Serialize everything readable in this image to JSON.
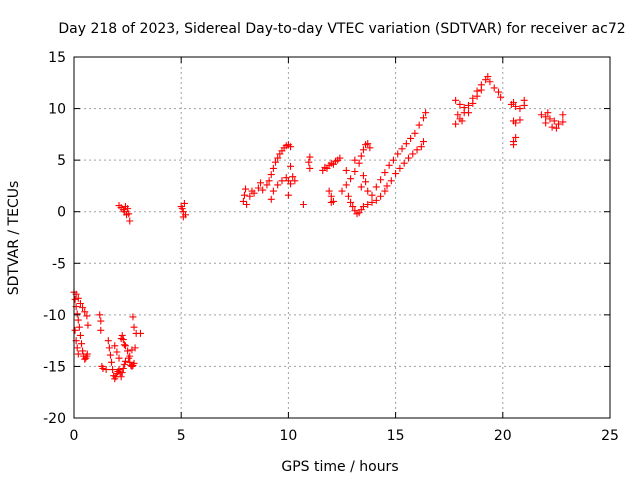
{
  "chart_data": {
    "type": "scatter",
    "title": "Day 218 of 2023, Sidereal Day-to-day VTEC variation (SDTVAR) for receiver ac72",
    "xlabel": "GPS time / hours",
    "ylabel": "SDTVAR / TECUs",
    "xlim": [
      0,
      25
    ],
    "ylim": [
      -20,
      15
    ],
    "xticks": [
      "0",
      "5",
      "10",
      "15",
      "20",
      "25"
    ],
    "yticks": [
      "-20",
      "-15",
      "-10",
      "-5",
      "0",
      "5",
      "10",
      "15"
    ],
    "grid": true,
    "marker": "+",
    "series": [
      {
        "name": "SDTVAR",
        "color": "#ff0000",
        "points": [
          [
            0.0,
            -7.8
          ],
          [
            0.05,
            -8.5
          ],
          [
            0.1,
            -9.2
          ],
          [
            0.15,
            -9.9
          ],
          [
            0.2,
            -10.5
          ],
          [
            0.25,
            -11.2
          ],
          [
            0.3,
            -12.0
          ],
          [
            0.35,
            -12.8
          ],
          [
            0.4,
            -13.5
          ],
          [
            0.45,
            -14.0
          ],
          [
            0.5,
            -14.3
          ],
          [
            0.55,
            -14.2
          ],
          [
            0.6,
            -14.0
          ],
          [
            0.62,
            -13.8
          ],
          [
            0.05,
            -11.5
          ],
          [
            0.1,
            -12.5
          ],
          [
            0.15,
            -13.2
          ],
          [
            0.2,
            -13.8
          ],
          [
            0.1,
            -8.0
          ],
          [
            0.2,
            -8.4
          ],
          [
            0.3,
            -8.9
          ],
          [
            0.4,
            -9.3
          ],
          [
            0.5,
            -9.7
          ],
          [
            0.6,
            -10.1
          ],
          [
            0.65,
            -11.0
          ],
          [
            1.2,
            -10.0
          ],
          [
            1.25,
            -10.6
          ],
          [
            1.25,
            -11.5
          ],
          [
            1.3,
            -15.0
          ],
          [
            1.35,
            -15.2
          ],
          [
            1.5,
            -15.3
          ],
          [
            1.6,
            -12.5
          ],
          [
            1.65,
            -13.2
          ],
          [
            1.7,
            -13.9
          ],
          [
            1.75,
            -14.6
          ],
          [
            1.8,
            -15.3
          ],
          [
            1.85,
            -15.9
          ],
          [
            1.9,
            -16.2
          ],
          [
            1.95,
            -16.0
          ],
          [
            2.0,
            -15.7
          ],
          [
            2.05,
            -15.5
          ],
          [
            2.1,
            -15.3
          ],
          [
            2.15,
            -15.6
          ],
          [
            2.2,
            -16.0
          ],
          [
            2.25,
            -15.6
          ],
          [
            2.3,
            -15.2
          ],
          [
            2.35,
            -14.8
          ],
          [
            2.4,
            -14.5
          ],
          [
            1.9,
            -13.0
          ],
          [
            2.0,
            -13.6
          ],
          [
            2.1,
            -14.2
          ],
          [
            2.2,
            -12.3
          ],
          [
            2.25,
            -12.0
          ],
          [
            2.3,
            -12.4
          ],
          [
            2.35,
            -12.9
          ],
          [
            2.4,
            -13.0
          ],
          [
            2.5,
            -13.5
          ],
          [
            2.55,
            -14.2
          ],
          [
            2.6,
            -14.6
          ],
          [
            2.65,
            -14.9
          ],
          [
            2.7,
            -15.0
          ],
          [
            2.75,
            -14.9
          ],
          [
            2.8,
            -14.7
          ],
          [
            2.85,
            -13.2
          ],
          [
            2.75,
            -10.2
          ],
          [
            2.8,
            -11.2
          ],
          [
            2.9,
            -11.8
          ],
          [
            3.1,
            -11.8
          ],
          [
            2.6,
            -14.0
          ],
          [
            2.7,
            -13.4
          ],
          [
            2.1,
            0.6
          ],
          [
            2.2,
            0.4
          ],
          [
            2.3,
            0.2
          ],
          [
            2.4,
            0.5
          ],
          [
            2.5,
            0.3
          ],
          [
            2.55,
            -0.2
          ],
          [
            2.6,
            -0.9
          ],
          [
            2.35,
            0.0
          ],
          [
            2.45,
            -0.3
          ],
          [
            5.05,
            0.3
          ],
          [
            5.1,
            0.0
          ],
          [
            5.15,
            0.8
          ],
          [
            5.2,
            -0.3
          ],
          [
            5.1,
            -0.5
          ],
          [
            5.0,
            0.5
          ],
          [
            7.9,
            1.0
          ],
          [
            7.95,
            1.6
          ],
          [
            8.0,
            2.2
          ],
          [
            8.05,
            0.7
          ],
          [
            8.2,
            1.5
          ],
          [
            8.3,
            2.0
          ],
          [
            8.4,
            1.8
          ],
          [
            8.6,
            2.3
          ],
          [
            8.8,
            2.1
          ],
          [
            9.0,
            2.6
          ],
          [
            9.1,
            3.0
          ],
          [
            9.2,
            3.6
          ],
          [
            9.3,
            4.2
          ],
          [
            9.4,
            4.8
          ],
          [
            9.5,
            5.2
          ],
          [
            9.6,
            5.6
          ],
          [
            9.7,
            5.9
          ],
          [
            9.8,
            6.2
          ],
          [
            9.9,
            6.4
          ],
          [
            10.0,
            6.5
          ],
          [
            10.1,
            6.3
          ],
          [
            9.3,
            2.0
          ],
          [
            9.5,
            2.6
          ],
          [
            9.7,
            3.0
          ],
          [
            9.9,
            3.3
          ],
          [
            10.0,
            3.0
          ],
          [
            10.1,
            2.7
          ],
          [
            10.2,
            3.4
          ],
          [
            10.3,
            3.0
          ],
          [
            10.1,
            4.4
          ],
          [
            10.0,
            1.6
          ],
          [
            9.2,
            1.2
          ],
          [
            8.7,
            2.8
          ],
          [
            10.7,
            0.7
          ],
          [
            10.95,
            4.8
          ],
          [
            11.0,
            5.3
          ],
          [
            11.0,
            4.2
          ],
          [
            11.6,
            4.0
          ],
          [
            11.7,
            4.3
          ],
          [
            11.8,
            4.2
          ],
          [
            11.9,
            4.5
          ],
          [
            12.0,
            4.7
          ],
          [
            12.1,
            4.6
          ],
          [
            12.2,
            4.9
          ],
          [
            12.3,
            5.0
          ],
          [
            12.4,
            5.2
          ],
          [
            11.9,
            2.0
          ],
          [
            12.0,
            1.5
          ],
          [
            12.1,
            1.0
          ],
          [
            12.0,
            0.9
          ],
          [
            12.5,
            2.0
          ],
          [
            12.7,
            2.6
          ],
          [
            12.9,
            3.2
          ],
          [
            13.1,
            3.9
          ],
          [
            13.3,
            4.7
          ],
          [
            13.4,
            5.4
          ],
          [
            13.5,
            6.0
          ],
          [
            13.6,
            6.5
          ],
          [
            13.7,
            6.6
          ],
          [
            13.8,
            6.2
          ],
          [
            12.8,
            1.5
          ],
          [
            12.9,
            0.9
          ],
          [
            13.0,
            0.5
          ],
          [
            13.1,
            0.1
          ],
          [
            13.2,
            -0.2
          ],
          [
            13.3,
            -0.1
          ],
          [
            13.4,
            0.2
          ],
          [
            13.5,
            0.5
          ],
          [
            13.7,
            0.7
          ],
          [
            13.9,
            0.9
          ],
          [
            14.1,
            1.1
          ],
          [
            14.3,
            1.5
          ],
          [
            14.5,
            2.0
          ],
          [
            13.7,
            2.0
          ],
          [
            13.9,
            1.6
          ],
          [
            14.1,
            2.4
          ],
          [
            14.3,
            3.1
          ],
          [
            14.5,
            3.8
          ],
          [
            14.7,
            4.5
          ],
          [
            14.9,
            5.0
          ],
          [
            15.1,
            5.6
          ],
          [
            15.3,
            6.1
          ],
          [
            15.5,
            6.6
          ],
          [
            15.7,
            7.1
          ],
          [
            15.9,
            7.6
          ],
          [
            16.1,
            8.4
          ],
          [
            16.3,
            9.1
          ],
          [
            16.4,
            9.6
          ],
          [
            14.6,
            2.5
          ],
          [
            14.8,
            3.0
          ],
          [
            15.0,
            3.7
          ],
          [
            15.2,
            4.2
          ],
          [
            15.4,
            4.7
          ],
          [
            15.6,
            5.2
          ],
          [
            15.8,
            5.6
          ],
          [
            16.0,
            6.0
          ],
          [
            16.2,
            6.3
          ],
          [
            16.3,
            6.8
          ],
          [
            13.5,
            3.5
          ],
          [
            13.6,
            2.9
          ],
          [
            13.4,
            2.4
          ],
          [
            12.7,
            4.0
          ],
          [
            13.1,
            5.0
          ],
          [
            17.8,
            8.5
          ],
          [
            18.0,
            9.0
          ],
          [
            18.2,
            9.6
          ],
          [
            18.4,
            10.3
          ],
          [
            18.6,
            11.0
          ],
          [
            18.8,
            11.7
          ],
          [
            19.0,
            12.3
          ],
          [
            19.2,
            12.8
          ],
          [
            19.3,
            13.1
          ],
          [
            19.4,
            12.6
          ],
          [
            19.6,
            12.0
          ],
          [
            19.8,
            11.6
          ],
          [
            19.9,
            11.1
          ],
          [
            17.8,
            10.8
          ],
          [
            18.0,
            10.4
          ],
          [
            18.2,
            10.1
          ],
          [
            18.4,
            9.6
          ],
          [
            18.6,
            10.5
          ],
          [
            18.8,
            11.2
          ],
          [
            19.0,
            11.8
          ],
          [
            17.9,
            9.4
          ],
          [
            18.1,
            8.8
          ],
          [
            20.4,
            10.4
          ],
          [
            20.5,
            10.6
          ],
          [
            20.6,
            10.2
          ],
          [
            20.8,
            10.0
          ],
          [
            21.0,
            10.3
          ],
          [
            20.5,
            8.8
          ],
          [
            20.6,
            8.6
          ],
          [
            20.8,
            8.9
          ],
          [
            20.5,
            6.8
          ],
          [
            20.6,
            7.2
          ],
          [
            20.5,
            6.5
          ],
          [
            21.0,
            10.8
          ],
          [
            21.8,
            9.4
          ],
          [
            22.0,
            9.2
          ],
          [
            22.2,
            9.0
          ],
          [
            22.4,
            8.8
          ],
          [
            22.6,
            8.5
          ],
          [
            22.8,
            8.7
          ],
          [
            22.0,
            8.6
          ],
          [
            22.3,
            8.2
          ],
          [
            22.5,
            8.1
          ],
          [
            22.8,
            9.4
          ],
          [
            22.1,
            9.6
          ]
        ]
      }
    ]
  }
}
